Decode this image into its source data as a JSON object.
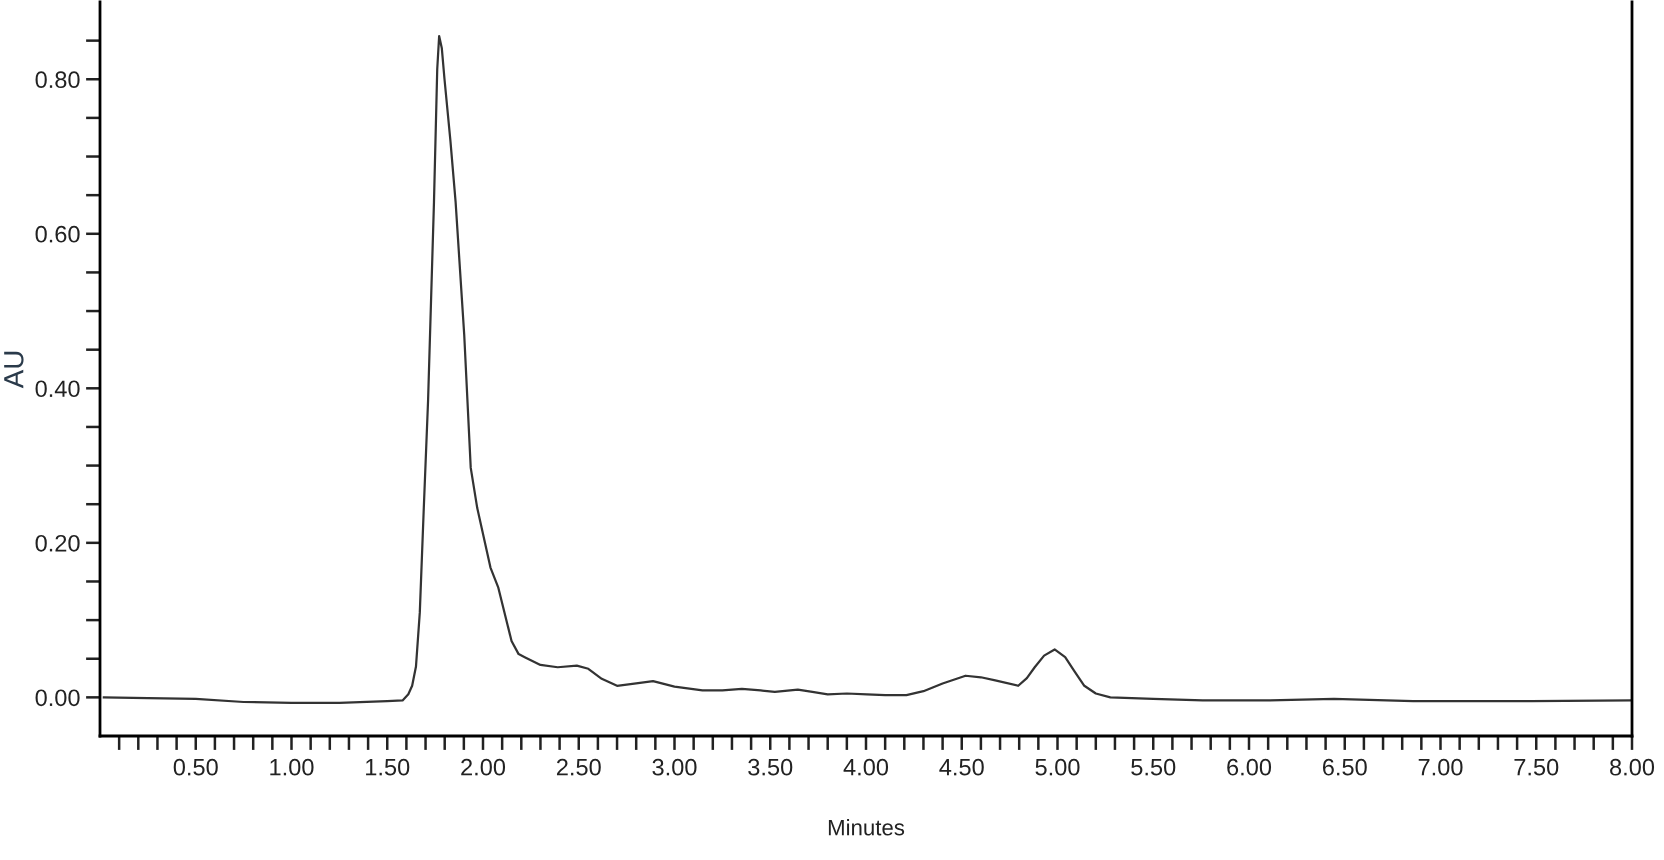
{
  "chart_data": {
    "type": "line",
    "xlabel": "Minutes",
    "ylabel": "AU",
    "xlim": [
      0,
      8.0
    ],
    "ylim": [
      -0.05,
      0.9
    ],
    "xticks": [
      {
        "value": 0.1,
        "label": null
      },
      {
        "value": 0.2,
        "label": null
      },
      {
        "value": 0.3,
        "label": null
      },
      {
        "value": 0.4,
        "label": null
      },
      {
        "value": 0.5,
        "label": "0.50"
      },
      {
        "value": 0.6,
        "label": null
      },
      {
        "value": 0.7,
        "label": null
      },
      {
        "value": 0.8,
        "label": null
      },
      {
        "value": 0.9,
        "label": null
      },
      {
        "value": 1.0,
        "label": "1.00"
      },
      {
        "value": 1.1,
        "label": null
      },
      {
        "value": 1.2,
        "label": null
      },
      {
        "value": 1.3,
        "label": null
      },
      {
        "value": 1.4,
        "label": null
      },
      {
        "value": 1.5,
        "label": "1.50"
      },
      {
        "value": 1.6,
        "label": null
      },
      {
        "value": 1.7,
        "label": null
      },
      {
        "value": 1.8,
        "label": null
      },
      {
        "value": 1.9,
        "label": null
      },
      {
        "value": 2.0,
        "label": "2.00"
      },
      {
        "value": 2.1,
        "label": null
      },
      {
        "value": 2.2,
        "label": null
      },
      {
        "value": 2.3,
        "label": null
      },
      {
        "value": 2.4,
        "label": null
      },
      {
        "value": 2.5,
        "label": "2.50"
      },
      {
        "value": 2.6,
        "label": null
      },
      {
        "value": 2.7,
        "label": null
      },
      {
        "value": 2.8,
        "label": null
      },
      {
        "value": 2.9,
        "label": null
      },
      {
        "value": 3.0,
        "label": "3.00"
      },
      {
        "value": 3.1,
        "label": null
      },
      {
        "value": 3.2,
        "label": null
      },
      {
        "value": 3.3,
        "label": null
      },
      {
        "value": 3.4,
        "label": null
      },
      {
        "value": 3.5,
        "label": "3.50"
      },
      {
        "value": 3.6,
        "label": null
      },
      {
        "value": 3.7,
        "label": null
      },
      {
        "value": 3.8,
        "label": null
      },
      {
        "value": 3.9,
        "label": null
      },
      {
        "value": 4.0,
        "label": "4.00"
      },
      {
        "value": 4.1,
        "label": null
      },
      {
        "value": 4.2,
        "label": null
      },
      {
        "value": 4.3,
        "label": null
      },
      {
        "value": 4.4,
        "label": null
      },
      {
        "value": 4.5,
        "label": "4.50"
      },
      {
        "value": 4.6,
        "label": null
      },
      {
        "value": 4.7,
        "label": null
      },
      {
        "value": 4.8,
        "label": null
      },
      {
        "value": 4.9,
        "label": null
      },
      {
        "value": 5.0,
        "label": "5.00"
      },
      {
        "value": 5.1,
        "label": null
      },
      {
        "value": 5.2,
        "label": null
      },
      {
        "value": 5.3,
        "label": null
      },
      {
        "value": 5.4,
        "label": null
      },
      {
        "value": 5.5,
        "label": "5.50"
      },
      {
        "value": 5.6,
        "label": null
      },
      {
        "value": 5.7,
        "label": null
      },
      {
        "value": 5.8,
        "label": null
      },
      {
        "value": 5.9,
        "label": null
      },
      {
        "value": 6.0,
        "label": "6.00"
      },
      {
        "value": 6.1,
        "label": null
      },
      {
        "value": 6.2,
        "label": null
      },
      {
        "value": 6.3,
        "label": null
      },
      {
        "value": 6.4,
        "label": null
      },
      {
        "value": 6.5,
        "label": "6.50"
      },
      {
        "value": 6.6,
        "label": null
      },
      {
        "value": 6.7,
        "label": null
      },
      {
        "value": 6.8,
        "label": null
      },
      {
        "value": 6.9,
        "label": null
      },
      {
        "value": 7.0,
        "label": "7.00"
      },
      {
        "value": 7.1,
        "label": null
      },
      {
        "value": 7.2,
        "label": null
      },
      {
        "value": 7.3,
        "label": null
      },
      {
        "value": 7.4,
        "label": null
      },
      {
        "value": 7.5,
        "label": "7.50"
      },
      {
        "value": 7.6,
        "label": null
      },
      {
        "value": 7.7,
        "label": null
      },
      {
        "value": 7.8,
        "label": null
      },
      {
        "value": 7.9,
        "label": null
      },
      {
        "value": 8.0,
        "label": "8.00"
      }
    ],
    "yticks": [
      {
        "value": 0.0,
        "label": "0.00"
      },
      {
        "value": 0.05,
        "label": null
      },
      {
        "value": 0.1,
        "label": null
      },
      {
        "value": 0.15,
        "label": null
      },
      {
        "value": 0.2,
        "label": "0.20"
      },
      {
        "value": 0.25,
        "label": null
      },
      {
        "value": 0.3,
        "label": null
      },
      {
        "value": 0.35,
        "label": null
      },
      {
        "value": 0.4,
        "label": "0.40"
      },
      {
        "value": 0.45,
        "label": null
      },
      {
        "value": 0.5,
        "label": null
      },
      {
        "value": 0.55,
        "label": null
      },
      {
        "value": 0.6,
        "label": "0.60"
      },
      {
        "value": 0.65,
        "label": null
      },
      {
        "value": 0.7,
        "label": null
      },
      {
        "value": 0.75,
        "label": null
      },
      {
        "value": 0.8,
        "label": "0.80"
      },
      {
        "value": 0.85,
        "label": null
      }
    ],
    "x": [
      0.02,
      0.25,
      0.5,
      0.75,
      1.0,
      1.25,
      1.5,
      1.58,
      1.61,
      1.63,
      1.65,
      1.67,
      1.69,
      1.713,
      1.744,
      1.761,
      1.771,
      1.785,
      1.799,
      1.83,
      1.857,
      1.902,
      1.936,
      1.97,
      2.039,
      2.08,
      2.149,
      2.186,
      2.218,
      2.3,
      2.39,
      2.49,
      2.55,
      2.62,
      2.7,
      2.8,
      2.888,
      3.0,
      3.146,
      3.25,
      3.352,
      3.45,
      3.524,
      3.644,
      3.72,
      3.8,
      3.9,
      4.005,
      4.1,
      4.211,
      4.3,
      4.4,
      4.52,
      4.6,
      4.675,
      4.795,
      4.84,
      4.881,
      4.93,
      4.985,
      5.04,
      5.088,
      5.14,
      5.2,
      5.276,
      5.5,
      5.758,
      6.1,
      6.444,
      6.857,
      7.475,
      8.0
    ],
    "series": [
      {
        "color": "#333333",
        "values": [
          0.0,
          -0.001,
          -0.002,
          -0.006,
          -0.007,
          -0.007,
          -0.005,
          -0.004,
          0.004,
          0.015,
          0.04,
          0.11,
          0.24,
          0.383,
          0.641,
          0.813,
          0.856,
          0.84,
          0.8,
          0.72,
          0.641,
          0.469,
          0.297,
          0.245,
          0.168,
          0.142,
          0.073,
          0.056,
          0.052,
          0.042,
          0.039,
          0.041,
          0.037,
          0.024,
          0.015,
          0.018,
          0.021,
          0.014,
          0.009,
          0.009,
          0.011,
          0.009,
          0.007,
          0.01,
          0.007,
          0.004,
          0.005,
          0.004,
          0.003,
          0.003,
          0.008,
          0.018,
          0.028,
          0.026,
          0.022,
          0.015,
          0.025,
          0.039,
          0.054,
          0.062,
          0.052,
          0.034,
          0.015,
          0.005,
          0.0,
          -0.002,
          -0.004,
          -0.004,
          -0.002,
          -0.005,
          -0.005,
          -0.004
        ]
      }
    ]
  }
}
